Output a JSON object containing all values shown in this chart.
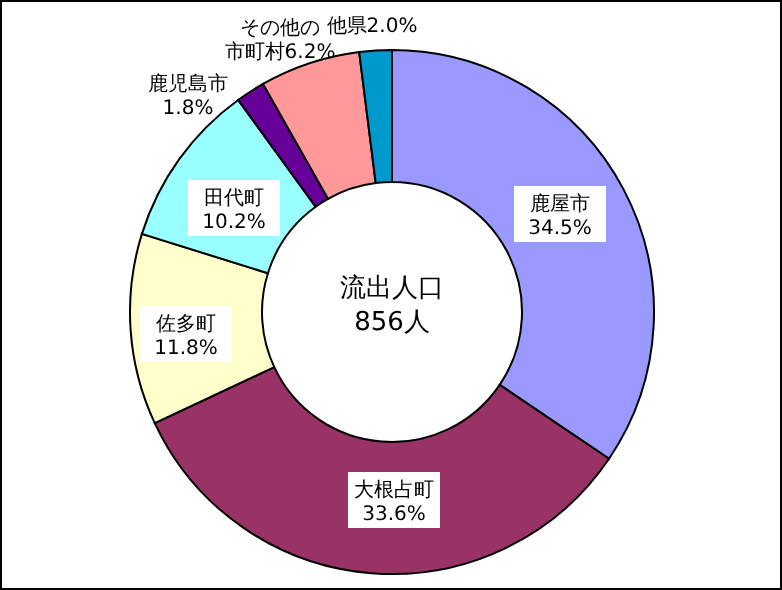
{
  "chart_data": {
    "type": "donut",
    "categories": [
      "鹿屋市",
      "大根占町",
      "佐多町",
      "田代町",
      "鹿児島市",
      "その他の市町村",
      "他県"
    ],
    "values": [
      34.5,
      33.6,
      11.8,
      10.2,
      1.8,
      6.2,
      2.0
    ],
    "value_labels": [
      "34.5%",
      "33.6%",
      "11.8%",
      "10.2%",
      "1.8%",
      "6.2%",
      "2.0%"
    ],
    "colors": [
      "#9999ff",
      "#993366",
      "#ffffcc",
      "#99ffff",
      "#660099",
      "#ff9999",
      "#0099cc"
    ],
    "annotations": [
      "流出人口",
      "856人"
    ]
  }
}
